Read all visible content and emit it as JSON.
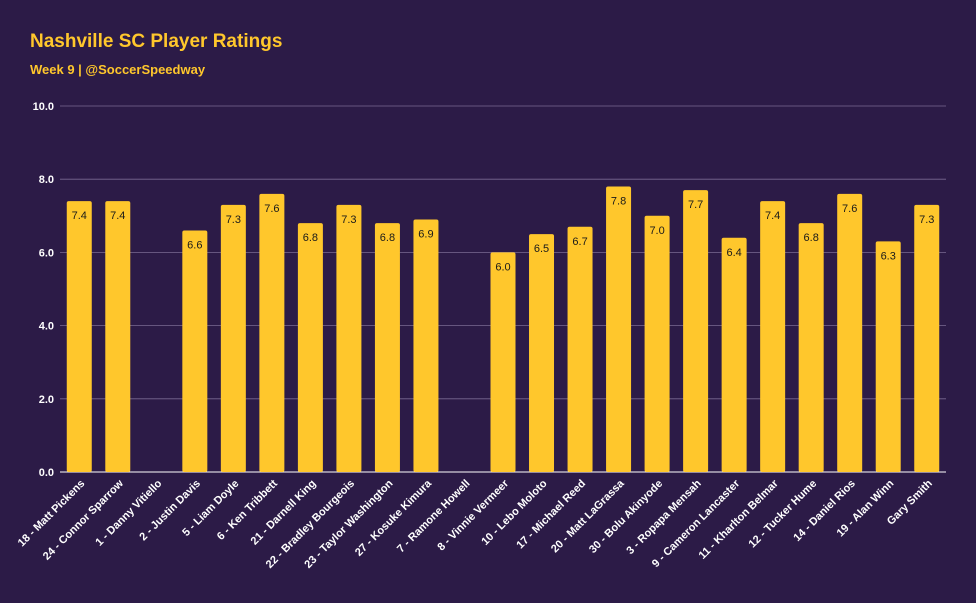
{
  "chart_data": {
    "type": "bar",
    "title": "Nashville SC Player Ratings",
    "subtitle": "Week 9  |  @SoccerSpeedway",
    "categories": [
      "18 - Matt Pickens",
      "24 - Connor Sparrow",
      "1 - Danny Vitiello",
      "2 - Justin Davis",
      "5 - Liam Doyle",
      "6 - Ken Tribbett",
      "21 - Darnell King",
      "22 - Bradley Bourgeois",
      "23 - Taylor Washington",
      "27 - Kosuke Kimura",
      "7 - Ramone Howell",
      "8 - Vinnie Vermeer",
      "10 - Lebo Moloto",
      "17 - Michael Reed",
      "20 - Matt LaGrassa",
      "30 - Bolu Akinyode",
      "3 - Ropapa Mensah",
      "9 - Cameron Lancaster",
      "11 - Kharlton Belmar",
      "12 - Tucker Hume",
      "14 - Daniel Rios",
      "19 - Alan Winn",
      "Gary Smith"
    ],
    "values": [
      7.4,
      7.4,
      null,
      6.6,
      7.3,
      7.6,
      6.8,
      7.3,
      6.8,
      6.9,
      null,
      6.0,
      6.5,
      6.7,
      7.8,
      7.0,
      7.7,
      6.4,
      7.4,
      6.8,
      7.6,
      6.3,
      7.3
    ],
    "ylim": [
      0,
      10
    ],
    "yticks": [
      "0.0",
      "2.0",
      "4.0",
      "6.0",
      "8.0",
      "10.0"
    ],
    "grid": true,
    "colors": {
      "background": "#2c1b47",
      "bar": "#ffc72c",
      "text": "#ffffff",
      "label": "#1a1a1a",
      "grid": "#7a6a92",
      "title": "#ffc72c"
    }
  }
}
